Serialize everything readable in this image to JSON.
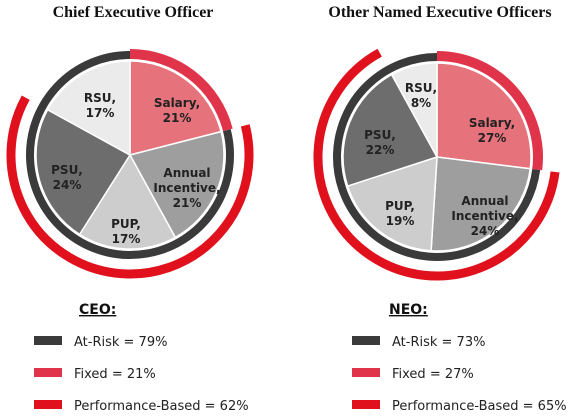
{
  "chart_data": [
    {
      "type": "pie",
      "title": "Chief Executive Officer",
      "start_category": "Salary",
      "slices": [
        {
          "label": "Salary,",
          "pct_label": "21%",
          "value": 21,
          "color": "#e6727c",
          "text_color": "#222222"
        },
        {
          "label": "Annual Incentive,",
          "pct_label": "21%",
          "value": 21,
          "color": "#9e9e9e",
          "text_color": "#222222"
        },
        {
          "label": "PUP,",
          "pct_label": "17%",
          "value": 17,
          "color": "#cdcdcd",
          "text_color": "#222222"
        },
        {
          "label": "PSU,",
          "pct_label": "24%",
          "value": 24,
          "color": "#6d6d6d",
          "text_color": "#222222"
        },
        {
          "label": "RSU,",
          "pct_label": "17%",
          "value": 17,
          "color": "#ebebeb",
          "text_color": "#222222"
        }
      ],
      "rings": {
        "at_risk": {
          "value": 79,
          "color": "#3a3a3a"
        },
        "fixed": {
          "value": 21,
          "color": "#e0344a"
        },
        "performance_based": {
          "value": 62,
          "color": "#e0111d"
        }
      },
      "legend": {
        "heading": "CEO:",
        "items": [
          {
            "key": "at_risk",
            "label": "At-Risk = 79%",
            "color": "#3a3a3a"
          },
          {
            "key": "fixed",
            "label": "Fixed = 21%",
            "color": "#e0344a"
          },
          {
            "key": "performance_based",
            "label": "Performance-Based = 62%",
            "color": "#e0111d"
          }
        ]
      }
    },
    {
      "type": "pie",
      "title": "Other Named Executive Officers",
      "start_category": "Salary",
      "slices": [
        {
          "label": "Salary,",
          "pct_label": "27%",
          "value": 27,
          "color": "#e6727c",
          "text_color": "#222222"
        },
        {
          "label": "Annual Incentive,",
          "pct_label": "24%",
          "value": 24,
          "color": "#9e9e9e",
          "text_color": "#222222"
        },
        {
          "label": "PUP,",
          "pct_label": "19%",
          "value": 19,
          "color": "#cdcdcd",
          "text_color": "#222222"
        },
        {
          "label": "PSU,",
          "pct_label": "22%",
          "value": 22,
          "color": "#6d6d6d",
          "text_color": "#222222"
        },
        {
          "label": "RSU,",
          "pct_label": "8%",
          "value": 8,
          "color": "#ebebeb",
          "text_color": "#222222"
        }
      ],
      "rings": {
        "at_risk": {
          "value": 73,
          "color": "#3a3a3a"
        },
        "fixed": {
          "value": 27,
          "color": "#e0344a"
        },
        "performance_based": {
          "value": 65,
          "color": "#e0111d"
        }
      },
      "legend": {
        "heading": "NEO:",
        "items": [
          {
            "key": "at_risk",
            "label": "At-Risk = 73%",
            "color": "#3a3a3a"
          },
          {
            "key": "fixed",
            "label": "Fixed = 27%",
            "color": "#e0344a"
          },
          {
            "key": "performance_based",
            "label": "Performance-Based = 65%",
            "color": "#e0111d"
          }
        ]
      }
    }
  ]
}
